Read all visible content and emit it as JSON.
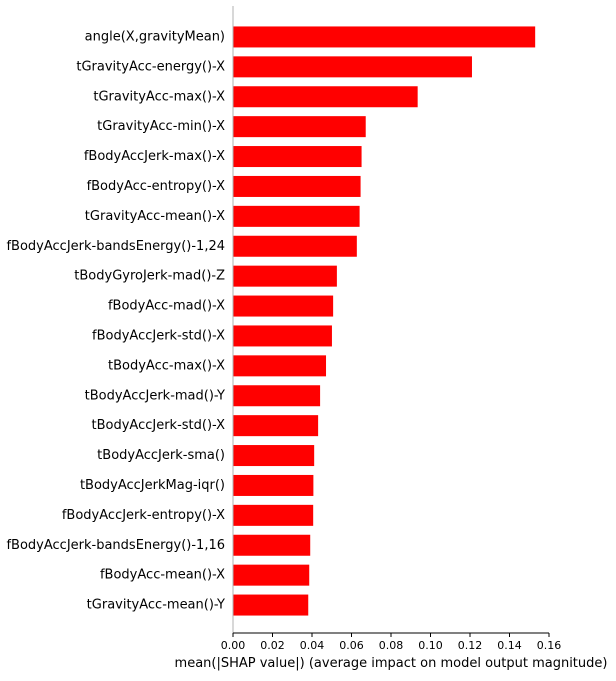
{
  "chart_data": {
    "type": "bar",
    "orientation": "horizontal",
    "title": "",
    "xlabel": "mean(|SHAP value|) (average impact on model output magnitude)",
    "ylabel": "",
    "xlim": [
      0,
      0.16
    ],
    "x_ticks": [
      "0.00",
      "0.02",
      "0.04",
      "0.06",
      "0.08",
      "0.10",
      "0.12",
      "0.14",
      "0.16"
    ],
    "grid": false,
    "bar_color": "#ff0000",
    "categories": [
      "angle(X,gravityMean)",
      "tGravityAcc-energy()-X",
      "tGravityAcc-max()-X",
      "tGravityAcc-min()-X",
      "fBodyAccJerk-max()-X",
      "fBodyAcc-entropy()-X",
      "tGravityAcc-mean()-X",
      "fBodyAccJerk-bandsEnergy()-1,24",
      "tBodyGyroJerk-mad()-Z",
      "fBodyAcc-mad()-X",
      "fBodyAccJerk-std()-X",
      "tBodyAcc-max()-X",
      "tBodyAccJerk-mad()-Y",
      "tBodyAccJerk-std()-X",
      "tBodyAccJerk-sma()",
      "tBodyAccJerkMag-iqr()",
      "fBodyAccJerk-entropy()-X",
      "fBodyAccJerk-bandsEnergy()-1,16",
      "fBodyAcc-mean()-X",
      "tGravityAcc-mean()-Y"
    ],
    "values": [
      0.153,
      0.121,
      0.0935,
      0.0672,
      0.0651,
      0.0646,
      0.0641,
      0.0627,
      0.0526,
      0.0507,
      0.0501,
      0.0471,
      0.0441,
      0.0431,
      0.0411,
      0.0407,
      0.0406,
      0.0391,
      0.0386,
      0.0381
    ]
  }
}
